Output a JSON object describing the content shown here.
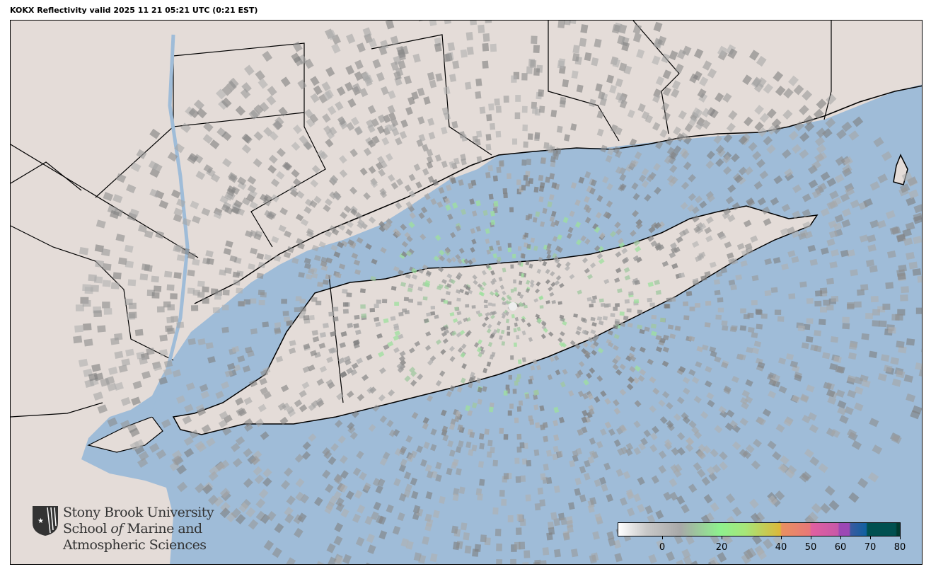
{
  "title": "KOKX Reflectivity valid 2025 11 21 05:21 UTC (0:21 EST)",
  "map": {
    "sea_color": "#9fbcd8",
    "land_color": "#e4dcd8",
    "radar_site": "KOKX",
    "border_color": "#000000"
  },
  "logo": {
    "line1": "Stony Brook University",
    "line2a": "School ",
    "line2b": "of",
    "line2c": " Marine and",
    "line3": "Atmospheric Sciences",
    "icon": "star-shield-icon"
  },
  "colorbar": {
    "range": [
      -15,
      80
    ],
    "ticks": [
      "0",
      "20",
      "40",
      "50",
      "60",
      "70",
      "80"
    ],
    "tick_values": [
      0,
      20,
      40,
      50,
      60,
      70,
      80
    ]
  }
}
